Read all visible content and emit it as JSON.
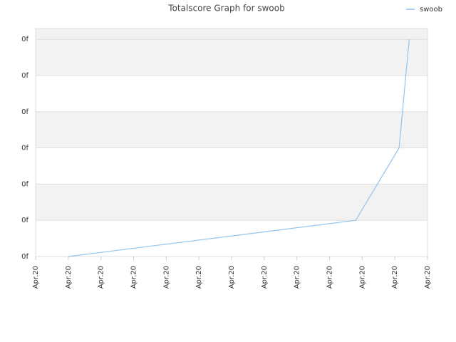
{
  "chart_data": {
    "type": "line",
    "title": "Totalscore Graph for swoob",
    "series": [
      {
        "name": "swoob",
        "color": "#8fc3f2",
        "x": [
          1,
          9.8,
          11.13,
          11.44
        ],
        "values": [
          0,
          1,
          3,
          6
        ]
      }
    ],
    "xlim": [
      0,
      12
    ],
    "xticks": [
      {
        "value": 0,
        "label": "Apr.20"
      },
      {
        "value": 1,
        "label": "Apr.20"
      },
      {
        "value": 2,
        "label": "Apr.20"
      },
      {
        "value": 3,
        "label": "Apr.20"
      },
      {
        "value": 4,
        "label": "Apr.20"
      },
      {
        "value": 5,
        "label": "Apr.20"
      },
      {
        "value": 6,
        "label": "Apr.20"
      },
      {
        "value": 7,
        "label": "Apr.20"
      },
      {
        "value": 8,
        "label": "Apr.20"
      },
      {
        "value": 9,
        "label": "Apr.20"
      },
      {
        "value": 10,
        "label": "Apr.20"
      },
      {
        "value": 11,
        "label": "Apr.20"
      },
      {
        "value": 12,
        "label": "Apr.20"
      }
    ],
    "ylim": [
      0,
      6.3
    ],
    "yticks": [
      {
        "value": 0,
        "label": "0f"
      },
      {
        "value": 1,
        "label": "0f"
      },
      {
        "value": 2,
        "label": "0f"
      },
      {
        "value": 3,
        "label": "0f"
      },
      {
        "value": 4,
        "label": "0f"
      },
      {
        "value": 5,
        "label": "0f"
      },
      {
        "value": 6,
        "label": "0f"
      }
    ],
    "grid": true,
    "legend": "top-right"
  }
}
